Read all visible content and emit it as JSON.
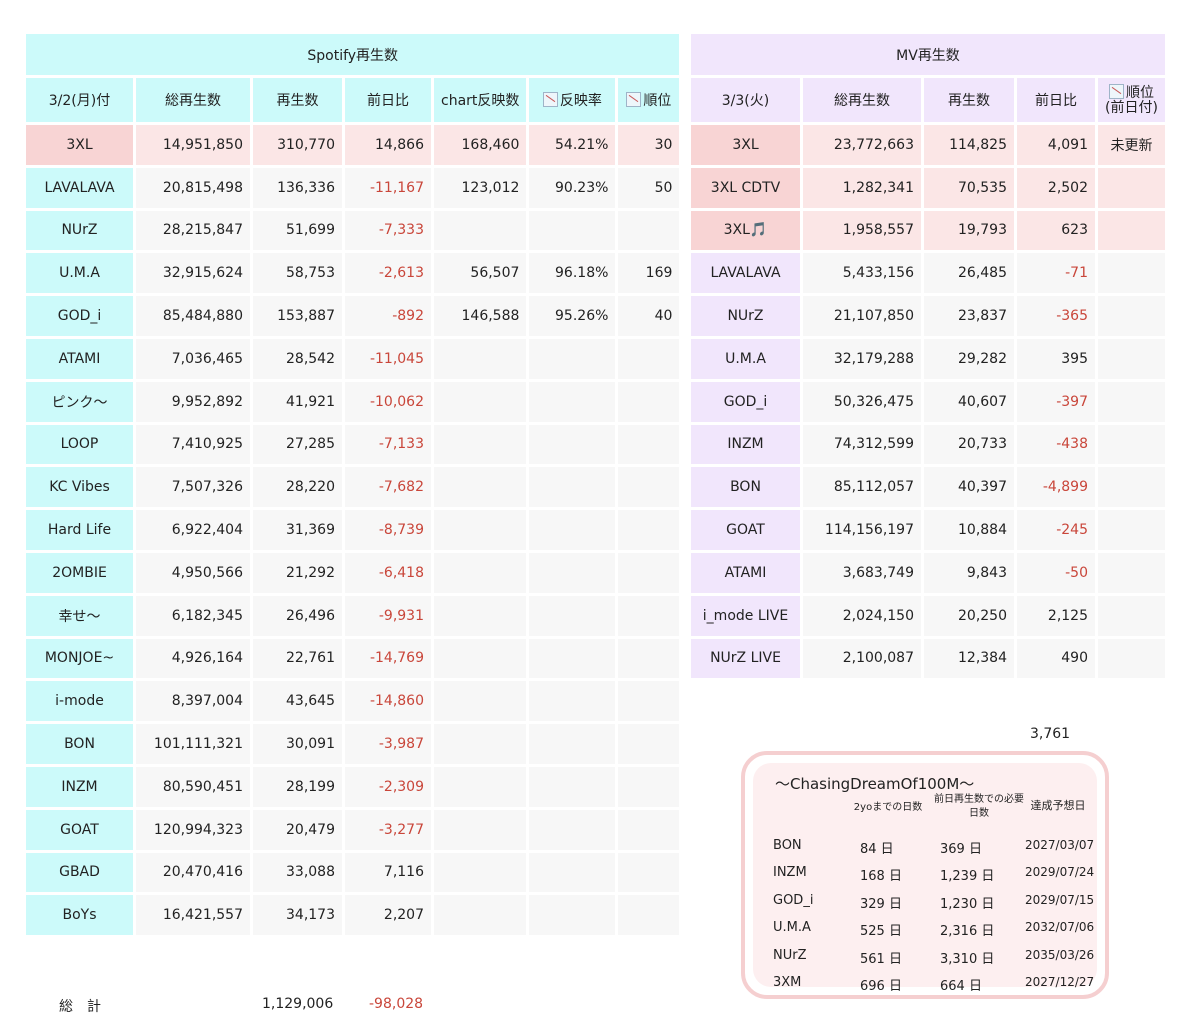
{
  "spotify": {
    "title": "Spotify再生数",
    "headers": {
      "date": "3/2(月)付",
      "total": "総再生数",
      "plays": "再生数",
      "diff": "前日比",
      "chart": "chart反映数",
      "rate": "反映率",
      "rank": "順位"
    },
    "rows": [
      {
        "name": "3XL",
        "total": "14,951,850",
        "plays": "310,770",
        "diff": "14,866",
        "chart": "168,460",
        "rate": "54.21%",
        "rank": "30"
      },
      {
        "name": "LAVALAVA",
        "total": "20,815,498",
        "plays": "136,336",
        "diff": "-11,167",
        "chart": "123,012",
        "rate": "90.23%",
        "rank": "50"
      },
      {
        "name": "NUrZ",
        "total": "28,215,847",
        "plays": "51,699",
        "diff": "-7,333",
        "chart": "",
        "rate": "",
        "rank": ""
      },
      {
        "name": "U.M.A",
        "total": "32,915,624",
        "plays": "58,753",
        "diff": "-2,613",
        "chart": "56,507",
        "rate": "96.18%",
        "rank": "169"
      },
      {
        "name": "GOD_i",
        "total": "85,484,880",
        "plays": "153,887",
        "diff": "-892",
        "chart": "146,588",
        "rate": "95.26%",
        "rank": "40"
      },
      {
        "name": "ATAMI",
        "total": "7,036,465",
        "plays": "28,542",
        "diff": "-11,045",
        "chart": "",
        "rate": "",
        "rank": ""
      },
      {
        "name": "ピンク〜",
        "total": "9,952,892",
        "plays": "41,921",
        "diff": "-10,062",
        "chart": "",
        "rate": "",
        "rank": ""
      },
      {
        "name": "LOOP",
        "total": "7,410,925",
        "plays": "27,285",
        "diff": "-7,133",
        "chart": "",
        "rate": "",
        "rank": ""
      },
      {
        "name": "KC Vibes",
        "total": "7,507,326",
        "plays": "28,220",
        "diff": "-7,682",
        "chart": "",
        "rate": "",
        "rank": ""
      },
      {
        "name": "Hard Life",
        "total": "6,922,404",
        "plays": "31,369",
        "diff": "-8,739",
        "chart": "",
        "rate": "",
        "rank": ""
      },
      {
        "name": "2OMBIE",
        "total": "4,950,566",
        "plays": "21,292",
        "diff": "-6,418",
        "chart": "",
        "rate": "",
        "rank": ""
      },
      {
        "name": "幸せ〜",
        "total": "6,182,345",
        "plays": "26,496",
        "diff": "-9,931",
        "chart": "",
        "rate": "",
        "rank": ""
      },
      {
        "name": "MONJOE~",
        "total": "4,926,164",
        "plays": "22,761",
        "diff": "-14,769",
        "chart": "",
        "rate": "",
        "rank": ""
      },
      {
        "name": "i-mode",
        "total": "8,397,004",
        "plays": "43,645",
        "diff": "-14,860",
        "chart": "",
        "rate": "",
        "rank": ""
      },
      {
        "name": "BON",
        "total": "101,111,321",
        "plays": "30,091",
        "diff": "-3,987",
        "chart": "",
        "rate": "",
        "rank": ""
      },
      {
        "name": "INZM",
        "total": "80,590,451",
        "plays": "28,199",
        "diff": "-2,309",
        "chart": "",
        "rate": "",
        "rank": ""
      },
      {
        "name": "GOAT",
        "total": "120,994,323",
        "plays": "20,479",
        "diff": "-3,277",
        "chart": "",
        "rate": "",
        "rank": ""
      },
      {
        "name": "GBAD",
        "total": "20,470,416",
        "plays": "33,088",
        "diff": "7,116",
        "chart": "",
        "rate": "",
        "rank": ""
      },
      {
        "name": "BoYs",
        "total": "16,421,557",
        "plays": "34,173",
        "diff": "2,207",
        "chart": "",
        "rate": "",
        "rank": ""
      }
    ],
    "total_label": "総　計",
    "total_plays": "1,129,006",
    "total_diff": "-98,028"
  },
  "mv": {
    "title": "MV再生数",
    "headers": {
      "date": "3/3(火)",
      "total": "総再生数",
      "plays": "再生数",
      "diff": "前日比",
      "rank": "順位",
      "rank_sub": "(前日付)"
    },
    "rows": [
      {
        "name": "3XL",
        "total": "23,772,663",
        "plays": "114,825",
        "diff": "4,091",
        "rank": "未更新"
      },
      {
        "name": "3XL CDTV",
        "total": "1,282,341",
        "plays": "70,535",
        "diff": "2,502",
        "rank": ""
      },
      {
        "name": "3XL🎵",
        "total": "1,958,557",
        "plays": "19,793",
        "diff": "623",
        "rank": ""
      },
      {
        "name": "LAVALAVA",
        "total": "5,433,156",
        "plays": "26,485",
        "diff": "-71",
        "rank": ""
      },
      {
        "name": "NUrZ",
        "total": "21,107,850",
        "plays": "23,837",
        "diff": "-365",
        "rank": ""
      },
      {
        "name": "U.M.A",
        "total": "32,179,288",
        "plays": "29,282",
        "diff": "395",
        "rank": ""
      },
      {
        "name": "GOD_i",
        "total": "50,326,475",
        "plays": "40,607",
        "diff": "-397",
        "rank": ""
      },
      {
        "name": "INZM",
        "total": "74,312,599",
        "plays": "20,733",
        "diff": "-438",
        "rank": ""
      },
      {
        "name": "BON",
        "total": "85,112,057",
        "plays": "40,397",
        "diff": "-4,899",
        "rank": ""
      },
      {
        "name": "GOAT",
        "total": "114,156,197",
        "plays": "10,884",
        "diff": "-245",
        "rank": ""
      },
      {
        "name": "ATAMI",
        "total": "3,683,749",
        "plays": "9,843",
        "diff": "-50",
        "rank": ""
      },
      {
        "name": "i_mode LIVE",
        "total": "2,024,150",
        "plays": "20,250",
        "diff": "2,125",
        "rank": ""
      },
      {
        "name": "NUrZ LIVE",
        "total": "2,100,087",
        "plays": "12,384",
        "diff": "490",
        "rank": ""
      }
    ],
    "extra_diff": "3,761"
  },
  "chasing": {
    "title": "〜ChasingDreamOf100M〜",
    "col1": "2yoまでの日数",
    "col2": "前日再生数での必要日数",
    "col3": "達成予想日",
    "rows": [
      {
        "name": "BON",
        "days": "84 日",
        "need": "369 日",
        "date": "2027/03/07"
      },
      {
        "name": "INZM",
        "days": "168 日",
        "need": "1,239 日",
        "date": "2029/07/24"
      },
      {
        "name": "GOD_i",
        "days": "329 日",
        "need": "1,230 日",
        "date": "2029/07/15"
      },
      {
        "name": "U.M.A",
        "days": "525 日",
        "need": "2,316 日",
        "date": "2032/07/06"
      },
      {
        "name": "NUrZ",
        "days": "561 日",
        "need": "3,310 日",
        "date": "2035/03/26"
      },
      {
        "name": "3XM",
        "days": "696 日",
        "need": "664 日",
        "date": "2027/12/27"
      }
    ]
  }
}
